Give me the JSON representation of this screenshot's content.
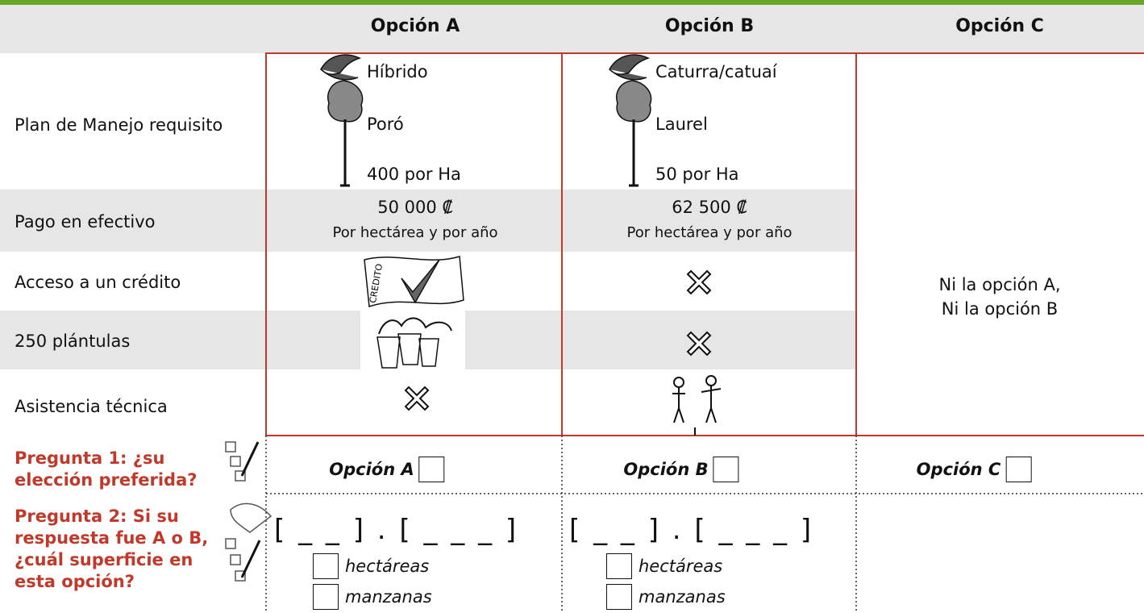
{
  "header": {
    "columns": [
      "Opción A",
      "Opción B",
      "Opción C"
    ]
  },
  "attributes": [
    {
      "label": "Plan de Manejo requisito",
      "option_a": [
        "Híbrido",
        "Poró",
        "400 por Ha"
      ],
      "option_b": [
        "Caturra/catuaí",
        "Laurel",
        "50 por Ha"
      ]
    },
    {
      "label": "Pago en efectivo",
      "option_a": [
        "50 000 ₡",
        "Por hectárea y por año"
      ],
      "option_b": [
        "62 500 ₡",
        "Por hectárea y por año"
      ]
    },
    {
      "label": "Acceso a un crédito",
      "icon_text": "CREDITO"
    },
    {
      "label": "250 plántulas"
    },
    {
      "label": "Asistencia técnica"
    }
  ],
  "option_c_text": [
    "Ni la opción A,",
    "Ni la opción B"
  ],
  "questions": [
    {
      "text": "Pregunta 1: ¿su elección preferida?",
      "choices": [
        "Opción A",
        "Opción B",
        "Opción C"
      ]
    },
    {
      "text": "Pregunta 2: Si su respuesta fue A o B, ¿cuál superficie en esta opción?",
      "format": "[ _ _ ] . [ _ _ _ ]",
      "units": [
        "hectáreas",
        "manzanas"
      ]
    }
  ]
}
